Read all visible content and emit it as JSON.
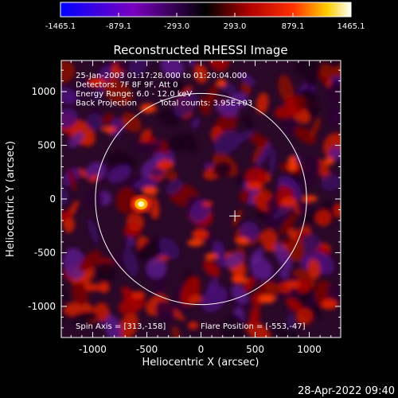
{
  "colorbar": {
    "tick_labels": [
      "-1465.1",
      "-879.1",
      "-293.0",
      "293.0",
      "879.1",
      "1465.1"
    ],
    "tick_values": [
      -1465.1,
      -879.1,
      -293.0,
      293.0,
      879.1,
      1465.1
    ],
    "range": [
      -1465.1,
      1465.1
    ]
  },
  "chart_data": {
    "type": "heatmap",
    "title": "Reconstructed RHESSI Image",
    "xlabel": "Heliocentric X (arcsec)",
    "ylabel": "Heliocentric Y (arcsec)",
    "xlim": [
      -1290,
      1290
    ],
    "ylim": [
      -1290,
      1290
    ],
    "x_ticks": [
      -1000,
      -500,
      0,
      500,
      1000
    ],
    "y_ticks": [
      -1000,
      -500,
      0,
      500,
      1000
    ],
    "x_tick_labels": [
      "-1000",
      "-500",
      "0",
      "500",
      "1000"
    ],
    "y_tick_labels": [
      "-1000",
      "-500",
      "0",
      "500",
      "1000"
    ],
    "solar_limb": {
      "center_x": 0,
      "center_y": 0,
      "radius": 975
    },
    "spin_axis_marker": {
      "x": 313,
      "y": -158
    },
    "flare_source": {
      "x": -553,
      "y": -47
    },
    "annotations": [
      "25-Jan-2003 01:17:28.000 to 01:20:04.000",
      "Detectors: 7F 8F 9F, Att 0",
      "Energy Range: 6.0 - 12.0 keV",
      "Back Projection",
      "Total counts: 3.95E+03"
    ],
    "footer_left": "Spin Axis = [313,-158]",
    "footer_right": "Flare Position = [-553,-47]"
  },
  "timestamp": "28-Apr-2022 09:40"
}
